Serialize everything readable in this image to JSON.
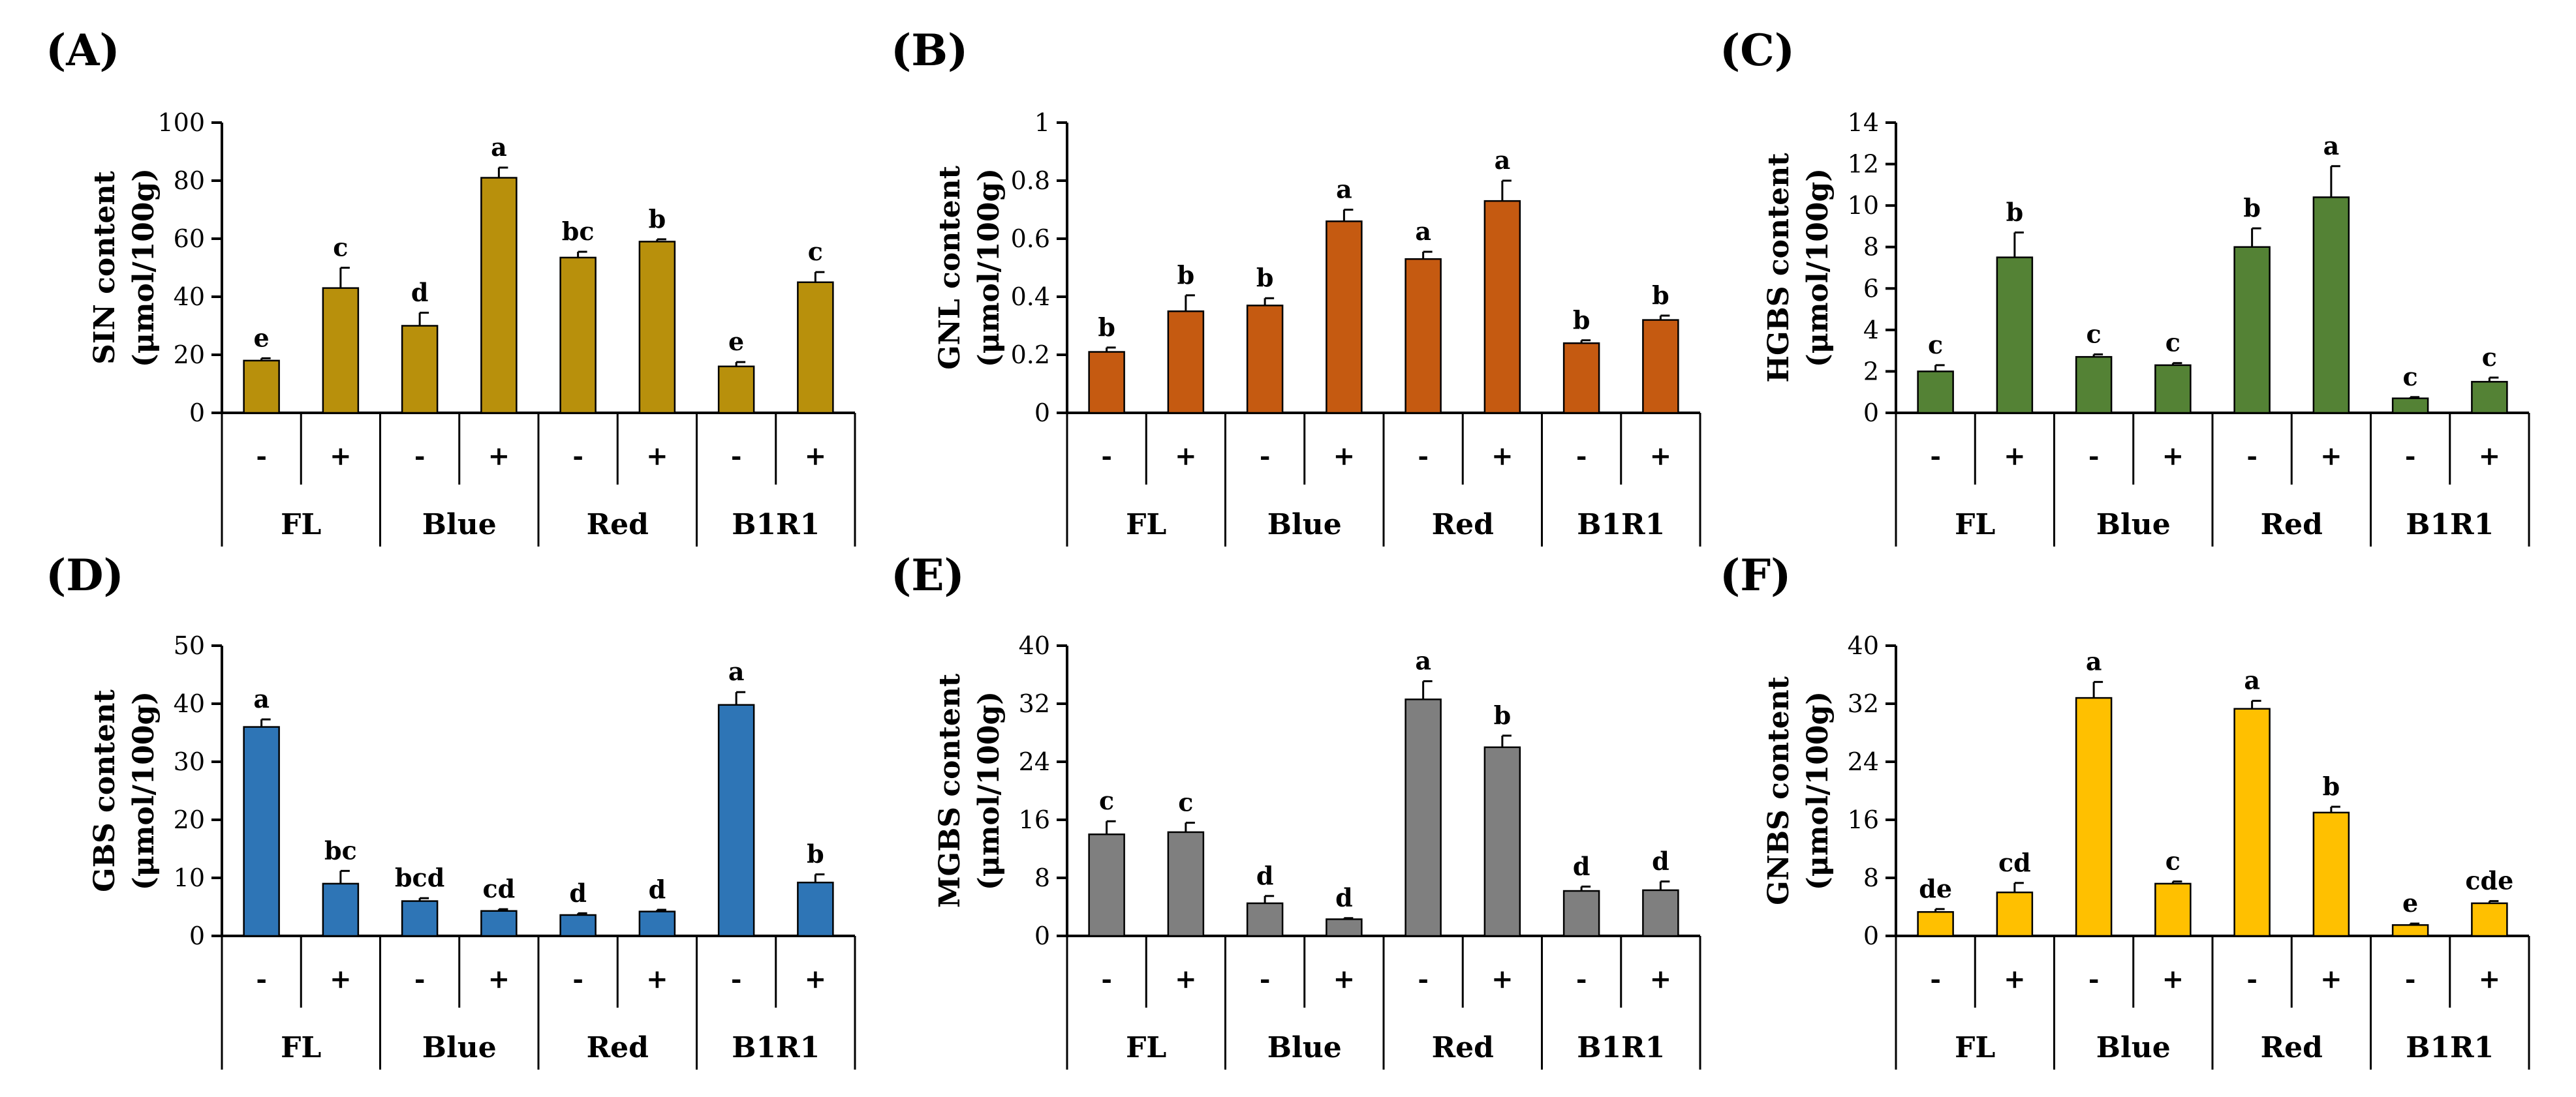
{
  "chart_data": [
    {
      "panel_label": "(A)",
      "type": "bar",
      "ylabel_line1": "SIN content",
      "ylabel_line2": "(μmol/100g)",
      "ylim": [
        0,
        100
      ],
      "yticks": [
        "0",
        "20",
        "40",
        "60",
        "80",
        "100"
      ],
      "color": "#B8900C",
      "treatments": [
        "-",
        "+",
        "-",
        "+",
        "-",
        "+",
        "-",
        "+"
      ],
      "groups": [
        "FL",
        "Blue",
        "Red",
        "B1R1"
      ],
      "values": [
        18,
        43,
        30,
        81,
        53.5,
        59,
        16,
        45
      ],
      "errors": [
        0.8,
        7,
        4.5,
        3.5,
        2,
        0.8,
        1.5,
        3.5
      ],
      "letters": [
        "e",
        "c",
        "d",
        "a",
        "bc",
        "b",
        "e",
        "c"
      ]
    },
    {
      "panel_label": "(B)",
      "type": "bar",
      "ylabel_line1": "GNL content",
      "ylabel_line2": "(μmol/100g)",
      "ylim": [
        0,
        1
      ],
      "yticks": [
        "0",
        "0.2",
        "0.4",
        "0.6",
        "0.8",
        "1"
      ],
      "color": "#C55A11",
      "treatments": [
        "-",
        "+",
        "-",
        "+",
        "-",
        "+",
        "-",
        "+"
      ],
      "groups": [
        "FL",
        "Blue",
        "Red",
        "B1R1"
      ],
      "values": [
        0.21,
        0.35,
        0.37,
        0.66,
        0.53,
        0.73,
        0.24,
        0.32
      ],
      "errors": [
        0.015,
        0.055,
        0.025,
        0.04,
        0.025,
        0.07,
        0.01,
        0.015
      ],
      "letters": [
        "b",
        "b",
        "b",
        "a",
        "a",
        "a",
        "b",
        "b"
      ]
    },
    {
      "panel_label": "(C)",
      "type": "bar",
      "ylabel_line1": "HGBS content",
      "ylabel_line2": "(μmol/100g)",
      "ylim": [
        0,
        14
      ],
      "yticks": [
        "0",
        "2",
        "4",
        "6",
        "8",
        "10",
        "12",
        "14"
      ],
      "color": "#548235",
      "treatments": [
        "-",
        "+",
        "-",
        "+",
        "-",
        "+",
        "-",
        "+"
      ],
      "groups": [
        "FL",
        "Blue",
        "Red",
        "B1R1"
      ],
      "values": [
        2,
        7.5,
        2.7,
        2.3,
        8,
        10.4,
        0.7,
        1.5
      ],
      "errors": [
        0.3,
        1.2,
        0.12,
        0.1,
        0.9,
        1.5,
        0.06,
        0.2
      ],
      "letters": [
        "c",
        "b",
        "c",
        "c",
        "b",
        "a",
        "c",
        "c"
      ]
    },
    {
      "panel_label": "(D)",
      "type": "bar",
      "ylabel_line1": "GBS content",
      "ylabel_line2": "(μmol/100g)",
      "ylim": [
        0,
        50
      ],
      "yticks": [
        "0",
        "10",
        "20",
        "30",
        "40",
        "50"
      ],
      "color": "#2E75B6",
      "treatments": [
        "-",
        "+",
        "-",
        "+",
        "-",
        "+",
        "-",
        "+"
      ],
      "groups": [
        "FL",
        "Blue",
        "Red",
        "B1R1"
      ],
      "values": [
        36,
        9,
        6,
        4.3,
        3.6,
        4.2,
        39.8,
        9.2
      ],
      "errors": [
        1.3,
        2.2,
        0.5,
        0.3,
        0.3,
        0.3,
        2.2,
        1.4
      ],
      "letters": [
        "a",
        "bc",
        "bcd",
        "cd",
        "d",
        "d",
        "a",
        "b"
      ]
    },
    {
      "panel_label": "(E)",
      "type": "bar",
      "ylabel_line1": "MGBS content",
      "ylabel_line2": "(μmol/100g)",
      "ylim": [
        0,
        40
      ],
      "yticks": [
        "0",
        "8",
        "16",
        "24",
        "32",
        "40"
      ],
      "color": "#7F7F7F",
      "treatments": [
        "-",
        "+",
        "-",
        "+",
        "-",
        "+",
        "-",
        "+"
      ],
      "groups": [
        "FL",
        "Blue",
        "Red",
        "B1R1"
      ],
      "values": [
        14,
        14.3,
        4.5,
        2.3,
        32.6,
        26,
        6.2,
        6.3
      ],
      "errors": [
        1.8,
        1.3,
        1.0,
        0.15,
        2.5,
        1.6,
        0.6,
        1.2
      ],
      "letters": [
        "c",
        "c",
        "d",
        "d",
        "a",
        "b",
        "d",
        "d"
      ]
    },
    {
      "panel_label": "(F)",
      "type": "bar",
      "ylabel_line1": "GNBS content",
      "ylabel_line2": "(μmol/100g)",
      "ylim": [
        0,
        40
      ],
      "yticks": [
        "0",
        "8",
        "16",
        "24",
        "32",
        "40"
      ],
      "color": "#FFC000",
      "treatments": [
        "-",
        "+",
        "-",
        "+",
        "-",
        "+",
        "-",
        "+"
      ],
      "groups": [
        "FL",
        "Blue",
        "Red",
        "B1R1"
      ],
      "values": [
        3.3,
        6,
        32.8,
        7.2,
        31.3,
        17,
        1.5,
        4.5
      ],
      "errors": [
        0.4,
        1.3,
        2.2,
        0.3,
        1.1,
        0.8,
        0.2,
        0.3
      ],
      "letters": [
        "de",
        "cd",
        "a",
        "c",
        "a",
        "b",
        "e",
        "cde"
      ]
    }
  ]
}
